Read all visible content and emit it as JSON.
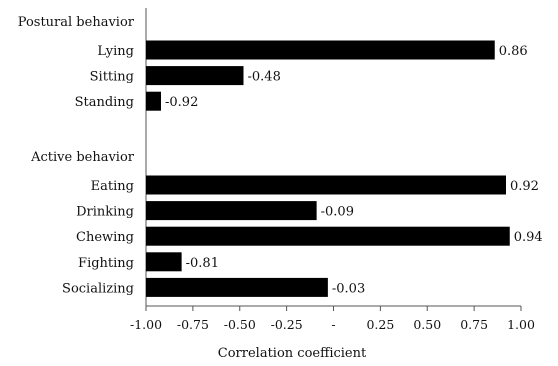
{
  "chart_data": {
    "type": "bar",
    "orientation": "horizontal",
    "xlabel": "Correlation coefficient",
    "xlim": [
      -1,
      1
    ],
    "x_ticks": [
      {
        "value": -1,
        "label": "-1.00"
      },
      {
        "value": -0.75,
        "label": "-0.75"
      },
      {
        "value": -0.5,
        "label": "-0.50"
      },
      {
        "value": -0.25,
        "label": "-0.25"
      },
      {
        "value": 0,
        "label": "-"
      },
      {
        "value": 0.25,
        "label": "0.25"
      },
      {
        "value": 0.5,
        "label": "0.50"
      },
      {
        "value": 0.75,
        "label": "0.75"
      },
      {
        "value": 1,
        "label": "1.00"
      }
    ],
    "groups": [
      {
        "name": "Postural behavior",
        "items": [
          {
            "category": "Lying",
            "value": 0.86,
            "label": "0.86"
          },
          {
            "category": "Sitting",
            "value": -0.48,
            "label": "-0.48"
          },
          {
            "category": "Standing",
            "value": -0.92,
            "label": "-0.92"
          }
        ]
      },
      {
        "name": "Active behavior",
        "items": [
          {
            "category": "Eating",
            "value": 0.92,
            "label": "0.92"
          },
          {
            "category": "Drinking",
            "value": -0.09,
            "label": "-0.09"
          },
          {
            "category": "Chewing",
            "value": 0.94,
            "label": "0.94"
          },
          {
            "category": "Fighting",
            "value": -0.81,
            "label": "-0.81"
          },
          {
            "category": "Socializing",
            "value": -0.03,
            "label": "-0.03"
          }
        ]
      }
    ],
    "bar_color": "#000000",
    "grid": false,
    "legend": "none"
  }
}
